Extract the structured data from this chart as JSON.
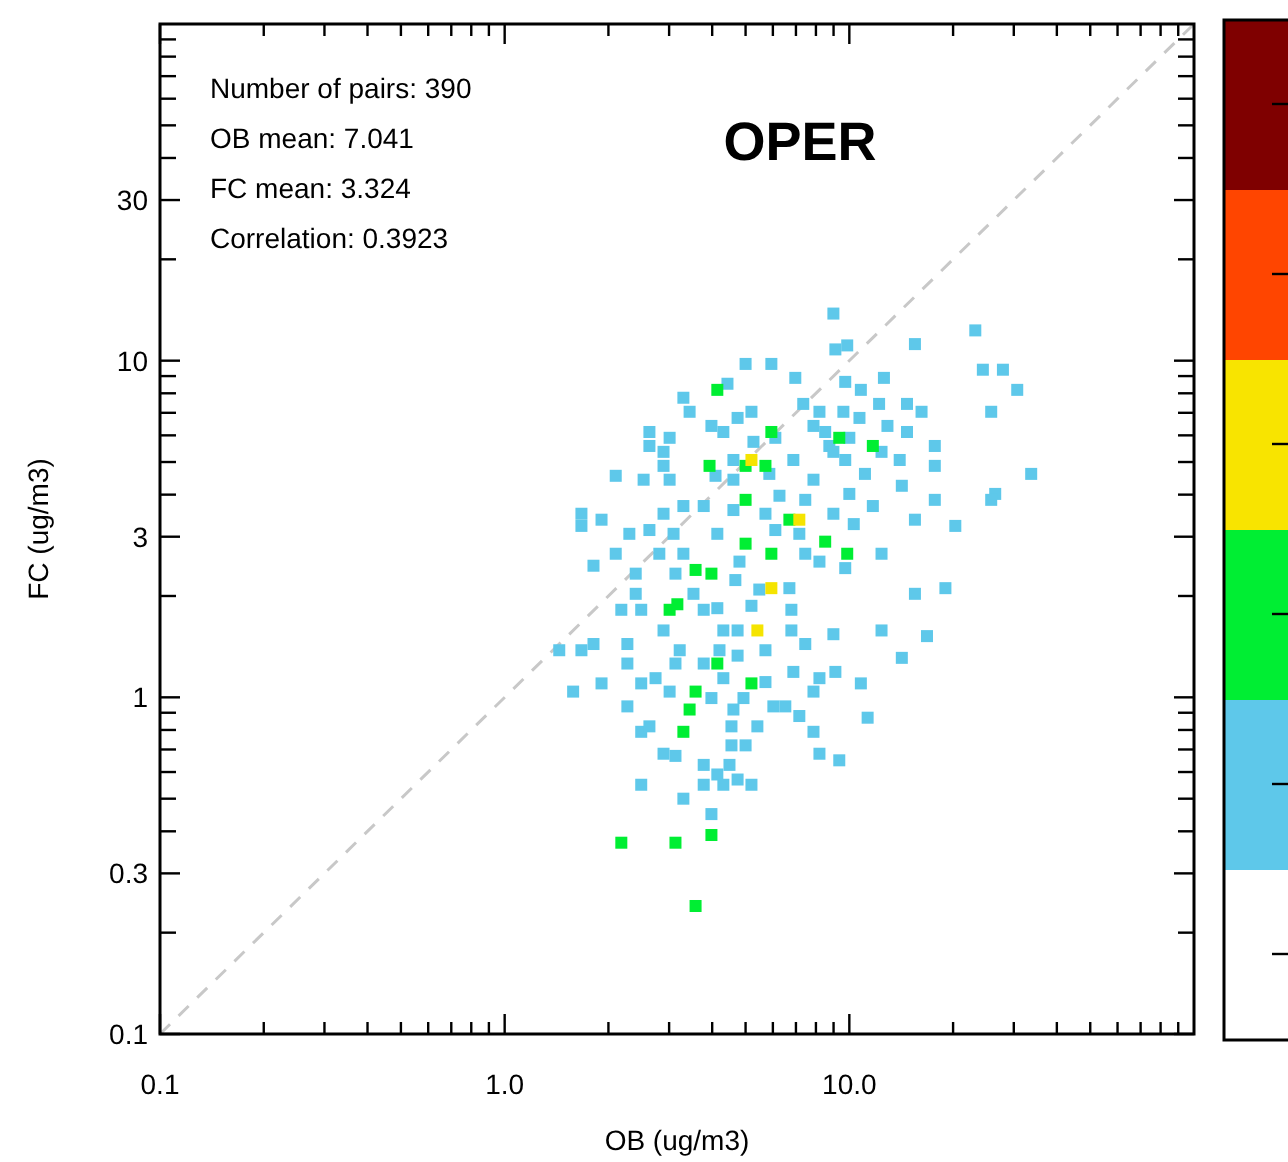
{
  "chart_data": {
    "type": "scatter",
    "title": "OPER",
    "xlabel": "OB (ug/m3)",
    "ylabel": "FC (ug/m3)",
    "log": "xy",
    "grid": false,
    "annotations": [
      "Number of pairs: 390",
      "OB mean: 7.041",
      "FC mean: 3.324",
      "Correlation: 0.3923"
    ],
    "xlim": [
      0.1,
      100
    ],
    "ylim": [
      0.1,
      100
    ],
    "xticks": [
      {
        "value": 0.1,
        "label": "0.1"
      },
      {
        "value": 0.2,
        "label": null
      },
      {
        "value": 0.3,
        "label": null
      },
      {
        "value": 0.4,
        "label": null
      },
      {
        "value": 0.5,
        "label": null
      },
      {
        "value": 0.6,
        "label": null
      },
      {
        "value": 0.7,
        "label": null
      },
      {
        "value": 0.8,
        "label": null
      },
      {
        "value": 0.9,
        "label": null
      },
      {
        "value": 1,
        "label": "1.0"
      },
      {
        "value": 2,
        "label": null
      },
      {
        "value": 3,
        "label": null
      },
      {
        "value": 4,
        "label": null
      },
      {
        "value": 5,
        "label": null
      },
      {
        "value": 6,
        "label": null
      },
      {
        "value": 7,
        "label": null
      },
      {
        "value": 8,
        "label": null
      },
      {
        "value": 9,
        "label": null
      },
      {
        "value": 10,
        "label": "10.0"
      },
      {
        "value": 20,
        "label": null
      },
      {
        "value": 30,
        "label": null
      },
      {
        "value": 40,
        "label": null
      },
      {
        "value": 50,
        "label": null
      },
      {
        "value": 60,
        "label": null
      },
      {
        "value": 70,
        "label": null
      },
      {
        "value": 80,
        "label": null
      },
      {
        "value": 90,
        "label": null
      }
    ],
    "yticks": [
      0.1,
      {
        "value": 0.2,
        "label": null
      },
      0.3,
      {
        "value": 0.4,
        "label": null
      },
      {
        "value": 0.5,
        "label": null
      },
      {
        "value": 0.6,
        "label": null
      },
      {
        "value": 0.7,
        "label": null
      },
      {
        "value": 0.8,
        "label": null
      },
      {
        "value": 0.9,
        "label": null
      },
      1,
      {
        "value": 2,
        "label": null
      },
      3,
      {
        "value": 4,
        "label": null
      },
      {
        "value": 5,
        "label": null
      },
      {
        "value": 6,
        "label": null
      },
      {
        "value": 7,
        "label": null
      },
      {
        "value": 8,
        "label": null
      },
      {
        "value": 9,
        "label": null
      },
      10,
      {
        "value": 20,
        "label": null
      },
      30,
      {
        "value": 40,
        "label": null
      },
      {
        "value": 50,
        "label": null
      },
      {
        "value": 60,
        "label": null
      },
      {
        "value": 70,
        "label": null
      },
      {
        "value": 80,
        "label": null
      },
      {
        "value": 90,
        "label": null
      }
    ],
    "series": [
      {
        "type": "line",
        "color": "#c8c8c8",
        "line_style": "dashed",
        "marker": "none",
        "x": [
          0.1,
          100
        ],
        "values": [
          0.1,
          100
        ]
      },
      {
        "color": "#5ec8ea",
        "marker": "square",
        "x": [
          8.99,
          23.2,
          15.5,
          9.11,
          9.86,
          5.0,
          5.94,
          24.4,
          27.9,
          6.97,
          9.73,
          12.6,
          4.43,
          30.7,
          10.8,
          3.3,
          7.35,
          14.7,
          12.2,
          3.44,
          5.2,
          8.19,
          9.61,
          16.2,
          25.8,
          4.74,
          10.7,
          3.98,
          7.87,
          12.9,
          2.63,
          4.31,
          8.51,
          14.7,
          3.01,
          6.1,
          10.0,
          2.63,
          5.27,
          8.75,
          17.7,
          2.89,
          8.99,
          12.4,
          4.61,
          6.88,
          9.73,
          14.0,
          2.89,
          17.7,
          2.1,
          2.53,
          3.01,
          4.09,
          4.61,
          5.86,
          7.87,
          11.1,
          33.7,
          14.2,
          26.5,
          6.27,
          7.45,
          10.0,
          17.7,
          25.8,
          1.67,
          1.91,
          2.89,
          3.3,
          3.78,
          4.61,
          5.71,
          8.99,
          10.3,
          11.7,
          15.5,
          20.3,
          1.67,
          2.3,
          2.63,
          3.09,
          4.14,
          6.1,
          7.16,
          2.1,
          2.81,
          3.3,
          12.4,
          7.45,
          4.8,
          1.81,
          2.4,
          3.13,
          4.67,
          9.73,
          8.19,
          2.4,
          3.53,
          5.48,
          6.7,
          15.5,
          19.0,
          2.18,
          2.49,
          3.78,
          4.14,
          5.2,
          6.79,
          2.89,
          4.31,
          4.74,
          6.79,
          8.99,
          12.4,
          16.8,
          1.44,
          1.67,
          1.81,
          2.27,
          3.22,
          4.2,
          5.71,
          7.45,
          2.27,
          3.13,
          3.78,
          4.74,
          6.88,
          9.11,
          14.2,
          1.58,
          1.91,
          2.49,
          2.74,
          3.01,
          4.31,
          5.71,
          8.19,
          10.8,
          7.87,
          2.27,
          3.98,
          4.93,
          6.02,
          6.52,
          7.16,
          4.61,
          2.49,
          2.63,
          4.55,
          5.41,
          7.87,
          11.3,
          2.89,
          3.13,
          4.55,
          5.0,
          8.19,
          9.35,
          3.78,
          4.49,
          4.14,
          4.74,
          2.49,
          3.78,
          4.31,
          5.2,
          3.3,
          3.98
        ],
        "values": [
          13.8,
          12.3,
          11.2,
          10.8,
          11.1,
          9.78,
          9.78,
          9.4,
          9.4,
          8.89,
          8.65,
          8.89,
          8.54,
          8.19,
          8.19,
          7.76,
          7.44,
          7.44,
          7.44,
          7.05,
          7.05,
          7.05,
          7.05,
          7.05,
          7.05,
          6.76,
          6.76,
          6.4,
          6.4,
          6.4,
          6.14,
          6.14,
          6.14,
          6.14,
          5.9,
          5.9,
          5.9,
          5.58,
          5.74,
          5.58,
          5.58,
          5.36,
          5.36,
          5.36,
          5.07,
          5.07,
          5.07,
          5.07,
          4.87,
          4.87,
          4.55,
          4.43,
          4.43,
          4.55,
          4.43,
          4.61,
          4.43,
          4.61,
          4.61,
          4.25,
          4.02,
          3.97,
          3.86,
          4.02,
          3.86,
          3.86,
          3.51,
          3.37,
          3.51,
          3.7,
          3.7,
          3.6,
          3.51,
          3.51,
          3.27,
          3.7,
          3.37,
          3.23,
          3.23,
          3.06,
          3.14,
          3.06,
          3.06,
          3.14,
          3.06,
          2.67,
          2.67,
          2.67,
          2.67,
          2.67,
          2.53,
          2.46,
          2.33,
          2.33,
          2.23,
          2.42,
          2.53,
          2.03,
          2.03,
          2.09,
          2.11,
          2.03,
          2.11,
          1.82,
          1.82,
          1.82,
          1.84,
          1.87,
          1.82,
          1.58,
          1.58,
          1.58,
          1.58,
          1.54,
          1.58,
          1.52,
          1.38,
          1.38,
          1.44,
          1.44,
          1.38,
          1.38,
          1.38,
          1.44,
          1.26,
          1.26,
          1.26,
          1.33,
          1.19,
          1.19,
          1.31,
          1.04,
          1.1,
          1.1,
          1.14,
          1.04,
          1.14,
          1.11,
          1.14,
          1.1,
          1.04,
          0.94,
          0.995,
          0.995,
          0.94,
          0.94,
          0.88,
          0.92,
          0.79,
          0.82,
          0.82,
          0.82,
          0.79,
          0.87,
          0.68,
          0.67,
          0.72,
          0.72,
          0.68,
          0.65,
          0.63,
          0.63,
          0.59,
          0.57,
          0.55,
          0.55,
          0.55,
          0.55,
          0.5,
          0.45
        ]
      },
      {
        "color": "#00ee33",
        "marker": "square",
        "x": [
          4.14,
          5.94,
          9.35,
          11.7,
          3.93,
          5.0,
          5.71,
          5.0,
          6.7,
          5.0,
          5.94,
          8.51,
          9.86,
          3.58,
          3.98,
          3.01,
          3.17,
          4.14,
          3.58,
          5.2,
          3.44,
          3.3,
          2.18,
          3.13,
          3.98,
          3.58
        ],
        "values": [
          8.19,
          6.14,
          5.9,
          5.58,
          4.87,
          4.87,
          4.87,
          3.86,
          3.37,
          2.86,
          2.67,
          2.9,
          2.67,
          2.39,
          2.33,
          1.82,
          1.89,
          1.26,
          1.04,
          1.1,
          0.92,
          0.79,
          0.37,
          0.37,
          0.39,
          0.24
        ]
      },
      {
        "color": "#f5e400",
        "marker": "square",
        "x": [
          5.2,
          7.16,
          5.94,
          5.41
        ],
        "values": [
          5.07,
          3.37,
          2.11,
          1.58
        ]
      }
    ]
  }
}
